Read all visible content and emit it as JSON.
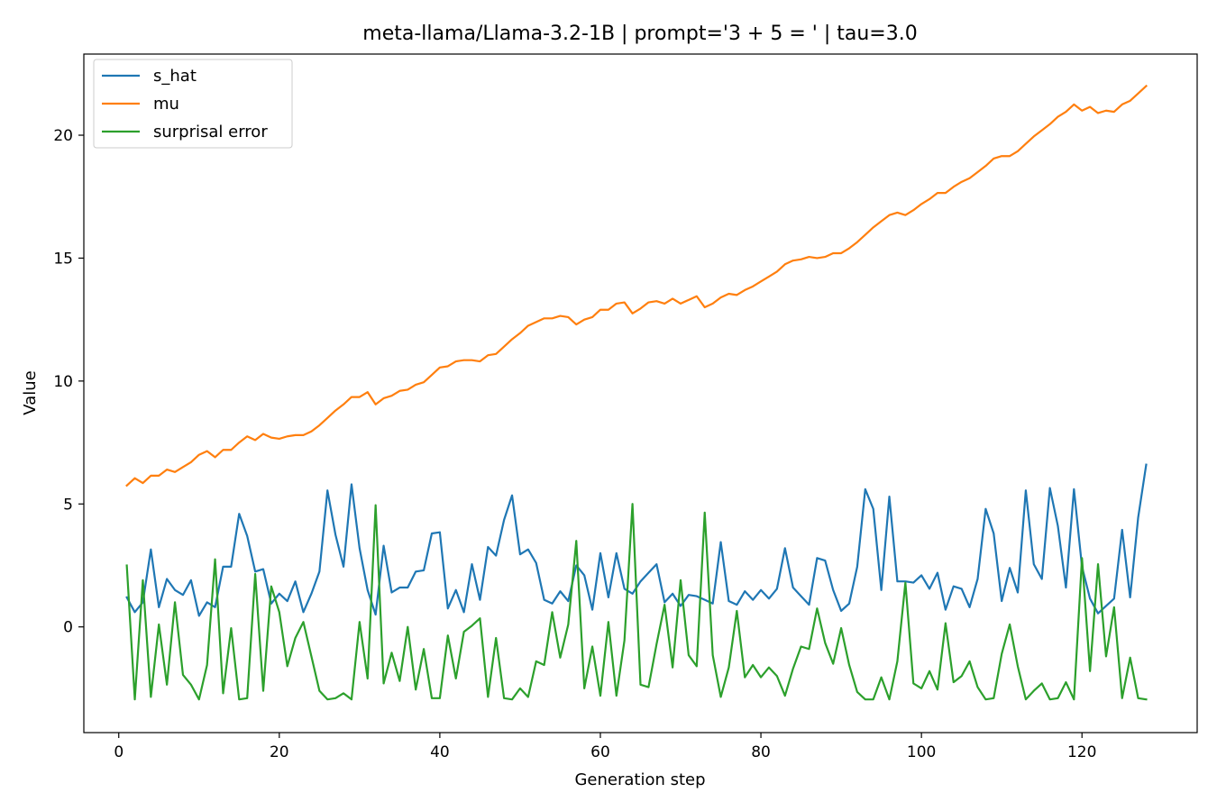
{
  "chart_data": {
    "type": "line",
    "title": "meta-llama/Llama-3.2-1B | prompt='3 + 5 = ' | tau=3.0",
    "xlabel": "Generation step",
    "ylabel": "Value",
    "xlim": [
      -4.35,
      134.35
    ],
    "ylim": [
      -4.3,
      23.3
    ],
    "xticks": [
      0,
      20,
      40,
      60,
      80,
      100,
      120
    ],
    "yticks": [
      0,
      5,
      10,
      15,
      20
    ],
    "grid": false,
    "legend_position": "upper left",
    "x": [
      1,
      2,
      3,
      4,
      5,
      6,
      7,
      8,
      9,
      10,
      11,
      12,
      13,
      14,
      15,
      16,
      17,
      18,
      19,
      20,
      21,
      22,
      23,
      24,
      25,
      26,
      27,
      28,
      29,
      30,
      31,
      32,
      33,
      34,
      35,
      36,
      37,
      38,
      39,
      40,
      41,
      42,
      43,
      44,
      45,
      46,
      47,
      48,
      49,
      50,
      51,
      52,
      53,
      54,
      55,
      56,
      57,
      58,
      59,
      60,
      61,
      62,
      63,
      64,
      65,
      66,
      67,
      68,
      69,
      70,
      71,
      72,
      73,
      74,
      75,
      76,
      77,
      78,
      79,
      80,
      81,
      82,
      83,
      84,
      85,
      86,
      87,
      88,
      89,
      90,
      91,
      92,
      93,
      94,
      95,
      96,
      97,
      98,
      99,
      100,
      101,
      102,
      103,
      104,
      105,
      106,
      107,
      108,
      109,
      110,
      111,
      112,
      113,
      114,
      115,
      116,
      117,
      118,
      119,
      120,
      121,
      122,
      123,
      124,
      125,
      126,
      127,
      128
    ],
    "series": [
      {
        "name": "s_hat",
        "color": "#1f77b4",
        "values": [
          1.2,
          0.6,
          1.0,
          3.15,
          0.8,
          1.95,
          1.5,
          1.3,
          1.9,
          0.45,
          1.0,
          0.8,
          2.45,
          2.45,
          4.6,
          3.7,
          2.25,
          2.35,
          0.95,
          1.35,
          1.05,
          1.85,
          0.6,
          1.35,
          2.25,
          5.55,
          3.75,
          2.45,
          5.8,
          3.2,
          1.5,
          0.5,
          3.3,
          1.4,
          1.6,
          1.6,
          2.25,
          2.3,
          3.8,
          3.85,
          0.75,
          1.5,
          0.6,
          2.55,
          1.1,
          3.25,
          2.9,
          4.35,
          5.35,
          2.95,
          3.15,
          2.6,
          1.1,
          0.95,
          1.45,
          1.05,
          2.5,
          2.1,
          0.7,
          3.0,
          1.2,
          3.0,
          1.55,
          1.35,
          1.85,
          2.2,
          2.55,
          1.0,
          1.35,
          0.85,
          1.3,
          1.25,
          1.1,
          0.95,
          3.45,
          1.05,
          0.9,
          1.45,
          1.1,
          1.5,
          1.15,
          1.55,
          3.2,
          1.6,
          1.25,
          0.9,
          2.8,
          2.7,
          1.5,
          0.65,
          0.95,
          2.45,
          5.6,
          4.8,
          1.5,
          5.3,
          1.85,
          1.85,
          1.8,
          2.1,
          1.55,
          2.2,
          0.7,
          1.65,
          1.55,
          0.8,
          1.95,
          4.8,
          3.8,
          1.05,
          2.4,
          1.4,
          5.55,
          2.55,
          1.95,
          5.65,
          4.1,
          1.6,
          5.6,
          2.45,
          1.15,
          0.55,
          0.85,
          1.15,
          3.95,
          1.2,
          4.45,
          6.6
        ]
      },
      {
        "name": "mu",
        "color": "#ff7f0e",
        "values": [
          5.75,
          6.05,
          5.85,
          6.15,
          6.15,
          6.4,
          6.3,
          6.5,
          6.7,
          7.0,
          7.15,
          6.9,
          7.2,
          7.2,
          7.5,
          7.75,
          7.6,
          7.85,
          7.7,
          7.65,
          7.75,
          7.8,
          7.8,
          7.95,
          8.2,
          8.5,
          8.8,
          9.05,
          9.35,
          9.35,
          9.55,
          9.05,
          9.3,
          9.4,
          9.6,
          9.65,
          9.85,
          9.95,
          10.25,
          10.55,
          10.6,
          10.8,
          10.85,
          10.85,
          10.8,
          11.05,
          11.1,
          11.4,
          11.7,
          11.95,
          12.25,
          12.4,
          12.55,
          12.55,
          12.65,
          12.6,
          12.3,
          12.5,
          12.6,
          12.9,
          12.9,
          13.15,
          13.2,
          12.75,
          12.95,
          13.2,
          13.25,
          13.15,
          13.35,
          13.15,
          13.3,
          13.45,
          13.0,
          13.15,
          13.4,
          13.55,
          13.5,
          13.7,
          13.85,
          14.05,
          14.25,
          14.45,
          14.75,
          14.9,
          14.95,
          15.05,
          15.0,
          15.05,
          15.2,
          15.2,
          15.4,
          15.65,
          15.95,
          16.25,
          16.5,
          16.75,
          16.85,
          16.75,
          16.95,
          17.2,
          17.4,
          17.65,
          17.65,
          17.9,
          18.1,
          18.25,
          18.5,
          18.75,
          19.05,
          19.15,
          19.15,
          19.35,
          19.65,
          19.95,
          20.2,
          20.45,
          20.75,
          20.95,
          21.25,
          21.0,
          21.15,
          20.9,
          21.0,
          20.95,
          21.25,
          21.4,
          21.7,
          22.0
        ]
      },
      {
        "name": "surprisal error",
        "color": "#2ca02c",
        "values": [
          2.5,
          -2.95,
          1.9,
          -2.85,
          0.1,
          -2.35,
          1.0,
          -1.95,
          -2.35,
          -2.95,
          -1.55,
          2.75,
          -2.7,
          -0.05,
          -2.95,
          -2.9,
          2.15,
          -2.6,
          1.65,
          0.6,
          -1.6,
          -0.45,
          0.2,
          -1.2,
          -2.6,
          -2.95,
          -2.9,
          -2.7,
          -2.95,
          0.2,
          -2.1,
          4.95,
          -2.3,
          -1.05,
          -2.2,
          0.0,
          -2.55,
          -0.9,
          -2.9,
          -2.9,
          -0.35,
          -2.1,
          -0.2,
          0.05,
          0.35,
          -2.85,
          -0.45,
          -2.9,
          -2.95,
          -2.5,
          -2.85,
          -1.4,
          -1.55,
          0.6,
          -1.25,
          0.1,
          3.5,
          -2.5,
          -0.8,
          -2.8,
          0.2,
          -2.8,
          -0.55,
          5.0,
          -2.35,
          -2.45,
          -0.7,
          0.9,
          -1.65,
          1.9,
          -1.15,
          -1.6,
          4.65,
          -1.15,
          -2.85,
          -1.65,
          0.65,
          -2.05,
          -1.55,
          -2.05,
          -1.65,
          -2.0,
          -2.8,
          -1.7,
          -0.8,
          -0.9,
          0.75,
          -0.65,
          -1.5,
          -0.05,
          -1.55,
          -2.65,
          -2.95,
          -2.95,
          -2.05,
          -2.95,
          -1.4,
          1.8,
          -2.3,
          -2.5,
          -1.8,
          -2.55,
          0.15,
          -2.25,
          -2.0,
          -1.4,
          -2.45,
          -2.95,
          -2.9,
          -1.1,
          0.1,
          -1.6,
          -2.95,
          -2.6,
          -2.3,
          -2.95,
          -2.9,
          -2.25,
          -2.95,
          2.8,
          -1.8,
          2.55,
          -1.2,
          0.8,
          -2.9,
          -1.25,
          -2.9,
          -2.95
        ]
      }
    ]
  }
}
